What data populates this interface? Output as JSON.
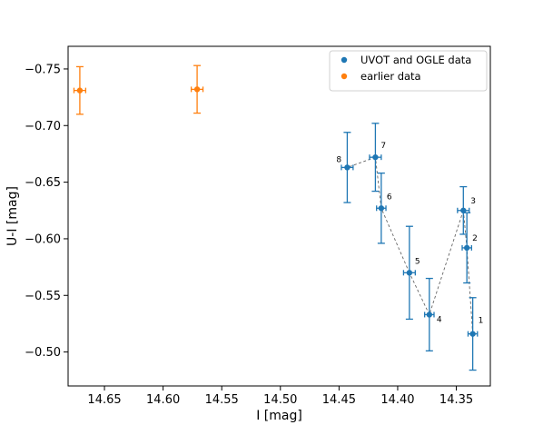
{
  "chart_data": {
    "type": "scatter",
    "xlabel": "I [mag]",
    "ylabel": "U-I [mag]",
    "xlim": [
      14.681,
      14.321
    ],
    "ylim": [
      -0.47,
      -0.77
    ],
    "x_inverted": true,
    "y_inverted": true,
    "xticks": [
      14.65,
      14.6,
      14.55,
      14.5,
      14.45,
      14.4,
      14.35
    ],
    "xtick_labels": [
      "14.65",
      "14.60",
      "14.55",
      "14.50",
      "14.45",
      "14.40",
      "14.35"
    ],
    "yticks": [
      -0.75,
      -0.7,
      -0.65,
      -0.6,
      -0.55,
      -0.5
    ],
    "ytick_labels": [
      "−0.75",
      "−0.70",
      "−0.65",
      "−0.60",
      "−0.55",
      "−0.50"
    ],
    "grid": false,
    "legend_position": "top-right",
    "series": [
      {
        "name": "UVOT and OGLE data",
        "color": "#1f77b4",
        "connected": true,
        "connector_style": "dashed-gray",
        "points": [
          {
            "label": "1",
            "x": 14.336,
            "y": -0.516,
            "xerr": 0.004,
            "yerr": 0.032
          },
          {
            "label": "2",
            "x": 14.341,
            "y": -0.592,
            "xerr": 0.004,
            "yerr": 0.031
          },
          {
            "label": "3",
            "x": 14.344,
            "y": -0.625,
            "xerr": 0.005,
            "yerr": 0.021
          },
          {
            "label": "4",
            "x": 14.373,
            "y": -0.533,
            "xerr": 0.004,
            "yerr": 0.032
          },
          {
            "label": "5",
            "x": 14.39,
            "y": -0.57,
            "xerr": 0.005,
            "yerr": 0.041
          },
          {
            "label": "6",
            "x": 14.414,
            "y": -0.627,
            "xerr": 0.004,
            "yerr": 0.031
          },
          {
            "label": "7",
            "x": 14.419,
            "y": -0.672,
            "xerr": 0.005,
            "yerr": 0.03
          },
          {
            "label": "8",
            "x": 14.443,
            "y": -0.663,
            "xerr": 0.005,
            "yerr": 0.031
          }
        ]
      },
      {
        "name": "earlier data",
        "color": "#ff7f0e",
        "connected": false,
        "points": [
          {
            "x": 14.671,
            "y": -0.731,
            "xerr": 0.005,
            "yerr": 0.021
          },
          {
            "x": 14.571,
            "y": -0.732,
            "xerr": 0.005,
            "yerr": 0.021
          }
        ]
      }
    ]
  }
}
